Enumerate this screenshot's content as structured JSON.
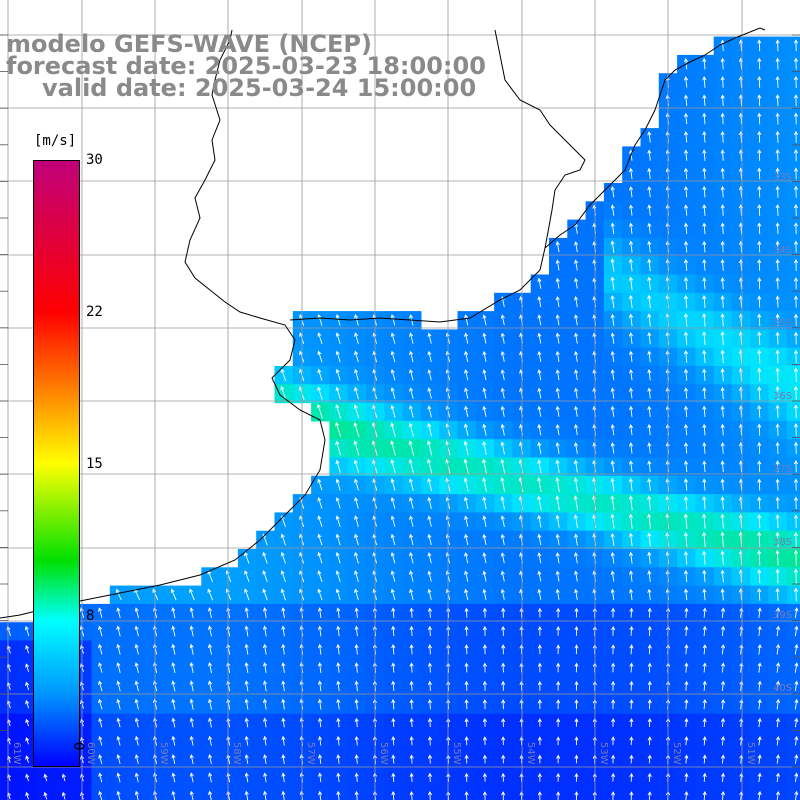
{
  "titles": {
    "line1": "modelo GEFS-WAVE (NCEP)",
    "line2": "forecast date: 2025-03-23 18:00:00",
    "line3": "valid date: 2025-03-24 15:00:00"
  },
  "colorbar": {
    "unit": "[m/s]",
    "ticks": [
      "30",
      "22",
      "15",
      "8",
      "0"
    ],
    "range": [
      0,
      30
    ]
  },
  "grid": {
    "lon_labels": [
      "61W",
      "60W",
      "59W",
      "58W",
      "57W",
      "56W",
      "55W",
      "54W",
      "53W",
      "52W",
      "51W"
    ],
    "lat_labels": [
      "33S",
      "34S",
      "35S",
      "36S",
      "37S",
      "38S",
      "39S",
      "40S"
    ]
  },
  "colors": {
    "coast": "#000000",
    "land": "#ffffff",
    "grid": "#9a9a9a",
    "vector": "#ffffff",
    "title": "#8a8a8a"
  }
}
